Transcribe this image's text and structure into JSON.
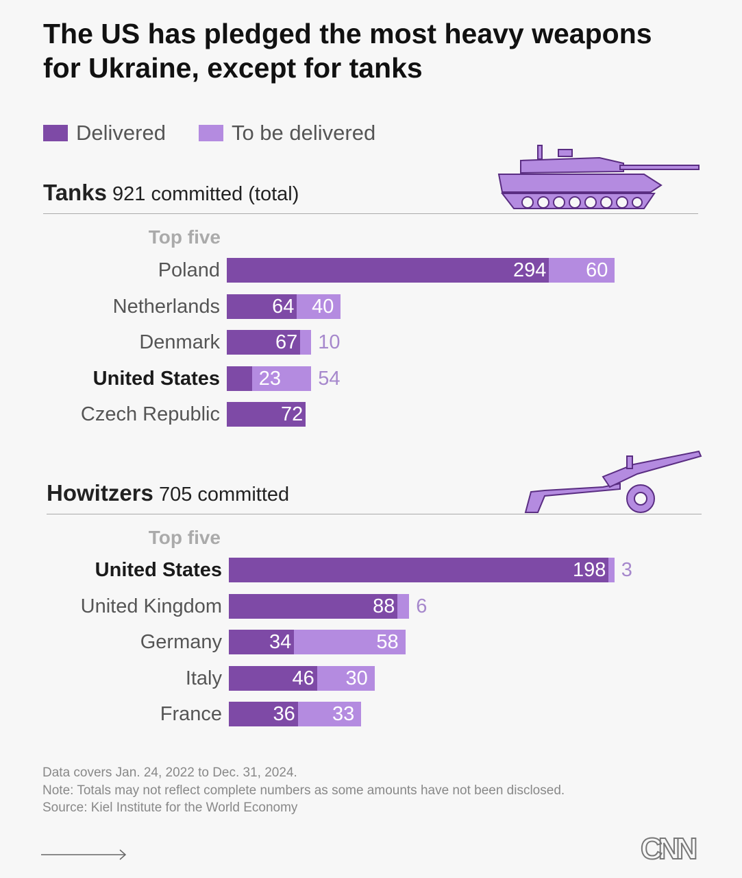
{
  "title": "The US has pledged the most heavy weapons for Ukraine, except for tanks",
  "colors": {
    "delivered": "#7e4aa6",
    "to_be_delivered": "#b48be0",
    "outside_label": "#a688cc"
  },
  "chart_data": [
    {
      "type": "bar",
      "orientation": "horizontal",
      "stacked": true,
      "section_name": "Tanks",
      "section_subtitle": "921 committed (total)",
      "subheading": "Top five",
      "categories": [
        "Poland",
        "Netherlands",
        "Denmark",
        "United States",
        "Czech Republic"
      ],
      "highlight": "United States",
      "legend": [
        "Delivered",
        "To be delivered"
      ],
      "series": [
        {
          "name": "Delivered",
          "values": [
            294,
            64,
            67,
            23,
            72
          ]
        },
        {
          "name": "To be delivered",
          "values": [
            60,
            40,
            10,
            54,
            0
          ]
        }
      ]
    },
    {
      "type": "bar",
      "orientation": "horizontal",
      "stacked": true,
      "section_name": "Howitzers",
      "section_subtitle": "705 committed",
      "subheading": "Top five",
      "categories": [
        "United States",
        "United Kingdom",
        "Germany",
        "Italy",
        "France"
      ],
      "highlight": "United States",
      "series": [
        {
          "name": "Delivered",
          "values": [
            198,
            88,
            34,
            46,
            36
          ]
        },
        {
          "name": "To be delivered",
          "values": [
            3,
            6,
            58,
            30,
            33
          ]
        }
      ]
    }
  ],
  "legend": {
    "delivered": "Delivered",
    "to_be_delivered": "To be delivered"
  },
  "icons": [
    "tank-icon",
    "howitzer-icon",
    "arrow-right-icon",
    "cnn-logo"
  ],
  "footer": {
    "line1": "Data covers Jan. 24, 2022 to Dec. 31, 2024.",
    "line2": "Note: Totals may not reflect complete numbers as some amounts have not been disclosed.",
    "line3": "Source: Kiel Institute for the World Economy"
  },
  "logo": "CNN"
}
